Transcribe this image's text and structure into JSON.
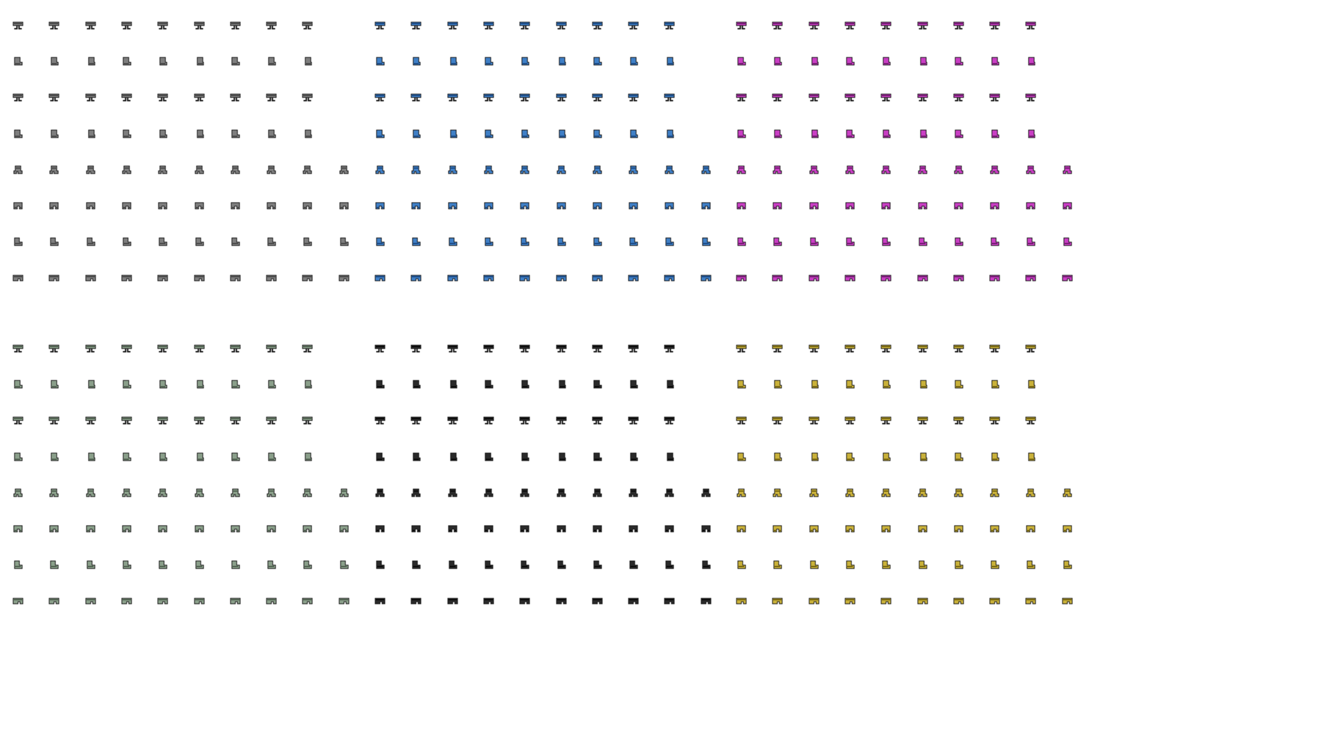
{
  "sheet": {
    "title": "",
    "background": "#ffffff",
    "outline_color": "#1a1a1a",
    "sprite_kind": "boots/leg armor walk-cycle frames",
    "variants": [
      {
        "name": "gray",
        "fill": "#7e7e7e",
        "shade": "#4e4e4e",
        "block": "top-left"
      },
      {
        "name": "blue",
        "fill": "#3f7fc6",
        "shade": "#1f4f8a",
        "block": "top-center"
      },
      {
        "name": "magenta",
        "fill": "#c93ec4",
        "shade": "#7a1f78",
        "block": "top-right"
      },
      {
        "name": "sage",
        "fill": "#8a9f8a",
        "shade": "#556655",
        "block": "bottom-left"
      },
      {
        "name": "black",
        "fill": "#2a2a2a",
        "shade": "#0e0e0e",
        "block": "bottom-center"
      },
      {
        "name": "gold",
        "fill": "#c9b13a",
        "shade": "#7d6c14",
        "block": "bottom-right"
      }
    ],
    "rows": [
      {
        "pose": "front",
        "frames": 9,
        "icon": "boots-front-icon"
      },
      {
        "pose": "side-left",
        "frames": 9,
        "icon": "boots-side-icon"
      },
      {
        "pose": "back",
        "frames": 9,
        "icon": "boots-back-icon"
      },
      {
        "pose": "side-right",
        "frames": 9,
        "icon": "boots-side-icon"
      },
      {
        "pose": "walk-a",
        "frames": 10,
        "icon": "boots-walk-icon"
      },
      {
        "pose": "walk-b",
        "frames": 10,
        "icon": "boots-stride-icon"
      },
      {
        "pose": "walk-c",
        "frames": 10,
        "icon": "boots-step-icon"
      },
      {
        "pose": "walk-d",
        "frames": 10,
        "icon": "boots-pair-icon"
      }
    ]
  }
}
